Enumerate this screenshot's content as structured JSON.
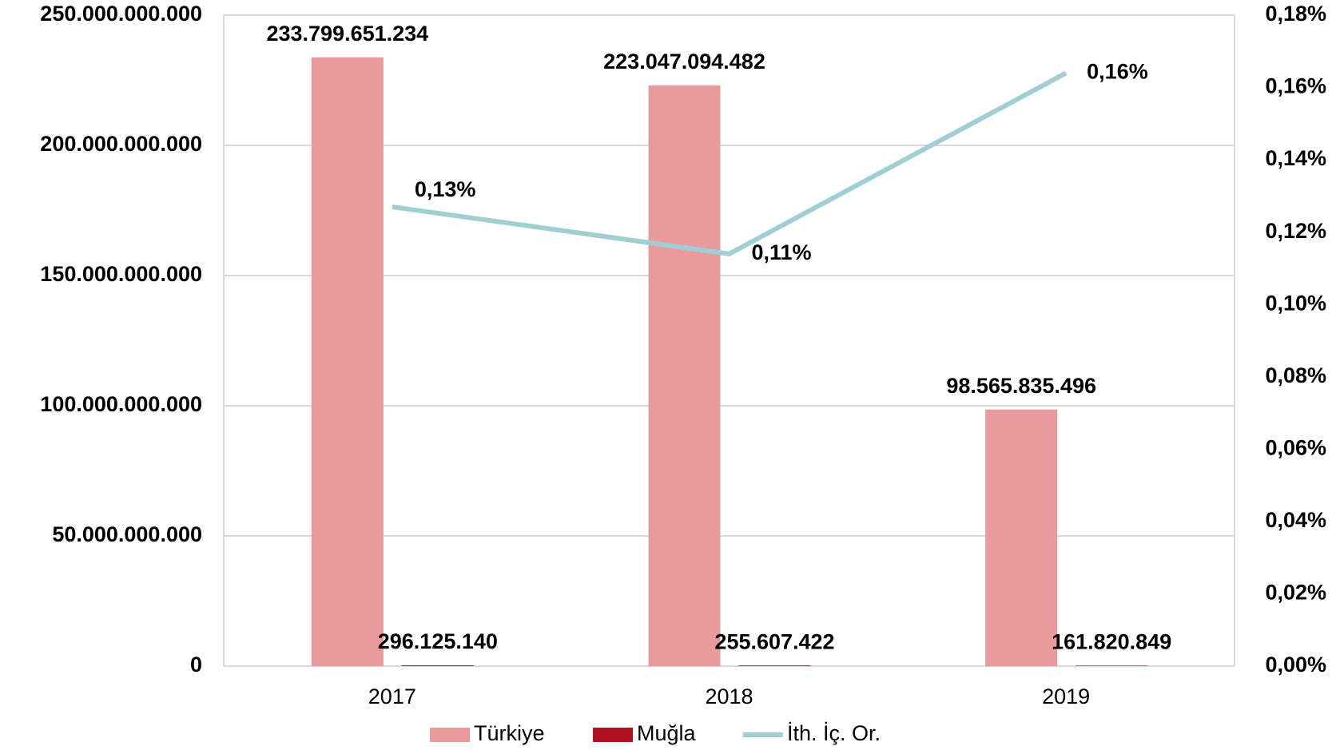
{
  "chart_data": {
    "type": "bar",
    "categories": [
      "2017",
      "2018",
      "2019"
    ],
    "series": [
      {
        "name": "Türkiye",
        "type": "bar",
        "color": "#e99a9c",
        "values": [
          233799651234,
          223047094482,
          98565835496
        ],
        "value_labels": [
          "233.799.651.234",
          "223.047.094.482",
          "98.565.835.496"
        ]
      },
      {
        "name": "Muğla",
        "type": "bar",
        "color": "#b01020",
        "values": [
          296125140,
          255607422,
          161820849
        ],
        "value_labels": [
          "296.125.140",
          "255.607.422",
          "161.820.849"
        ]
      },
      {
        "name": "İth. İç. Or.",
        "type": "line",
        "axis": "y2",
        "color": "#9fcfd3",
        "values": [
          0.127,
          0.114,
          0.164
        ],
        "value_labels": [
          "0,13%",
          "0,11%",
          "0,16%"
        ]
      }
    ],
    "ylim": [
      0,
      250000000000
    ],
    "yticks": [
      0,
      {
        "value": 50000000000,
        "label": "50.000.000.000"
      },
      {
        "value": 100000000000,
        "label": "100.000.000.000"
      },
      {
        "value": 150000000000,
        "label": "150.000.000.000"
      },
      {
        "value": 200000000000,
        "label": "200.000.000.000"
      },
      {
        "value": 250000000000,
        "label": "250.000.000.000"
      }
    ],
    "y2lim": [
      0,
      0.18
    ],
    "y2ticks": [
      {
        "value": 0,
        "label": "0,00%"
      },
      {
        "value": 0.02,
        "label": "0,02%"
      },
      {
        "value": 0.04,
        "label": "0,04%"
      },
      {
        "value": 0.06,
        "label": "0,06%"
      },
      {
        "value": 0.08,
        "label": "0,08%"
      },
      {
        "value": 0.1,
        "label": "0,10%"
      },
      {
        "value": 0.12,
        "label": "0,12%"
      },
      {
        "value": 0.14,
        "label": "0,14%"
      },
      {
        "value": 0.16,
        "label": "0,16%"
      },
      {
        "value": 0.18,
        "label": "0,18%"
      }
    ],
    "grid": true,
    "legend": "bottom"
  }
}
